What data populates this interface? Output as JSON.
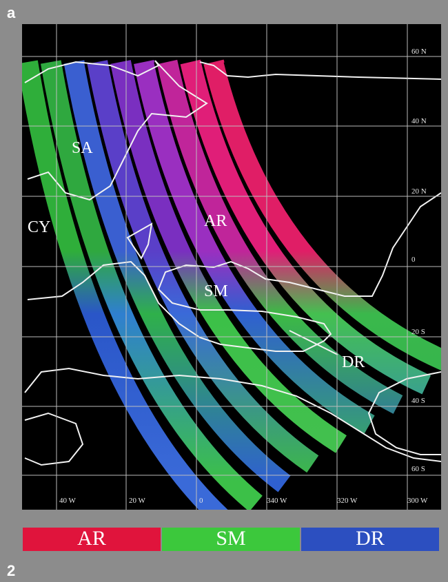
{
  "panel_label": "a",
  "figure_number": "2",
  "map": {
    "lat_labels": [
      "60 N",
      "40 N",
      "20 N",
      "0",
      "20 S",
      "40 S",
      "60 S"
    ],
    "lon_labels": [
      "40 W",
      "20 W",
      "0",
      "340 W",
      "320 W",
      "300 W"
    ],
    "region_labels": [
      "SA",
      "CY",
      "AR",
      "SM",
      "DR"
    ]
  },
  "legend": [
    "AR",
    "SM",
    "DR"
  ]
}
